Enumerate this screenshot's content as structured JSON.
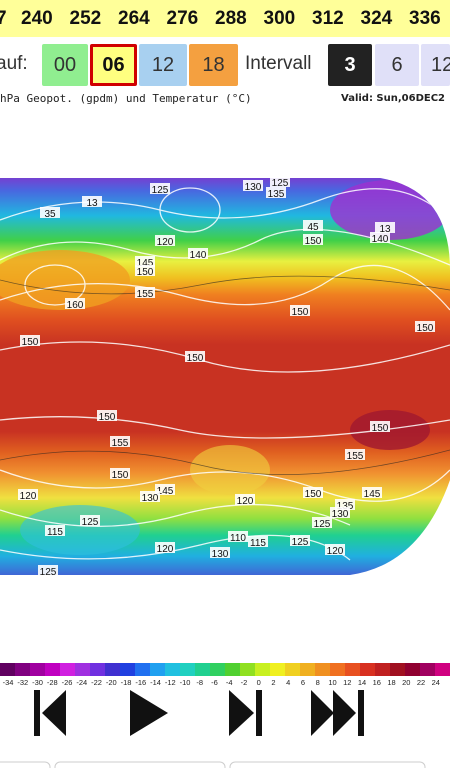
{
  "header": {
    "hours": [
      "7",
      "240",
      "252",
      "264",
      "276",
      "288",
      "300",
      "312",
      "324",
      "336"
    ]
  },
  "run": {
    "label": "auf:",
    "options": [
      "00",
      "06",
      "12",
      "18"
    ]
  },
  "interval": {
    "label": "Intervall",
    "options": [
      "3",
      "6",
      "12"
    ]
  },
  "subtitle": "hPa Geopot. (gpdm) und Temperatur (°C)",
  "valid": "Valid: Sun,06DEC2",
  "map": {
    "labels": [
      "125",
      "130",
      "125",
      "135",
      "13",
      "35",
      "120",
      "140",
      "145",
      "150",
      "45",
      "150",
      "13",
      "140",
      "160",
      "155",
      "150",
      "150",
      "150",
      "150",
      "150",
      "150",
      "155",
      "155",
      "150",
      "145",
      "130",
      "120",
      "120",
      "150",
      "145",
      "135",
      "130",
      "125",
      "125",
      "115",
      "110",
      "115",
      "125",
      "120",
      "130",
      "120",
      "125"
    ]
  },
  "legend": {
    "ticks": [
      "-34",
      "-32",
      "-30",
      "-28",
      "-26",
      "-24",
      "-22",
      "-20",
      "-18",
      "-16",
      "-14",
      "-12",
      "-10",
      "-8",
      "-6",
      "-4",
      "-2",
      "0",
      "2",
      "4",
      "6",
      "8",
      "10",
      "12",
      "14",
      "16",
      "18",
      "20",
      "22",
      "24"
    ]
  }
}
